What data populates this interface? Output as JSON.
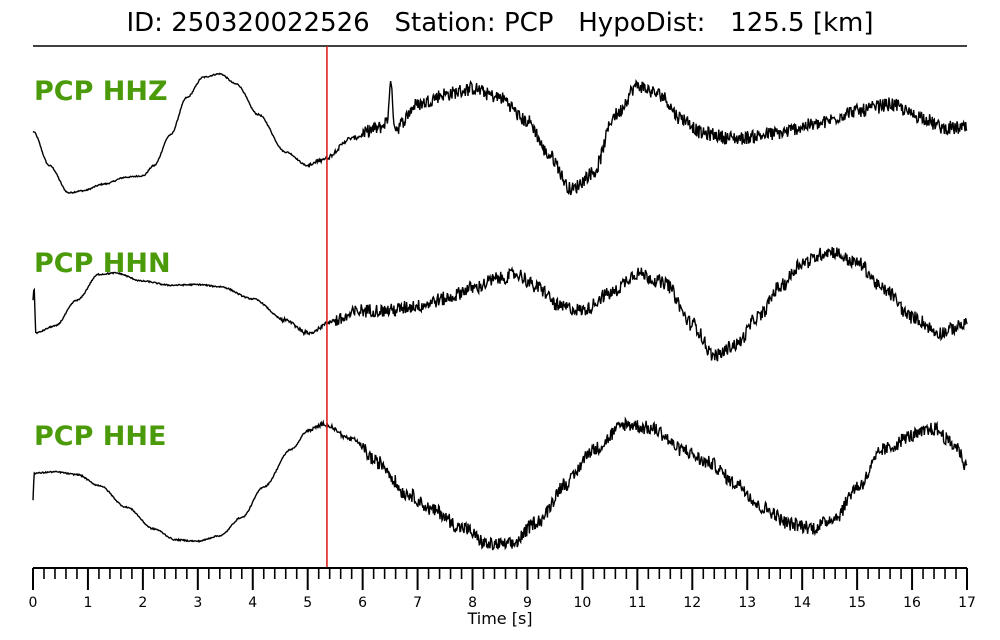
{
  "header": {
    "title": "ID: 250320022526   Station: PCP   HypoDist:   125.5 [km]"
  },
  "colors": {
    "channel_label": "#4a9a0a",
    "pick_line": "#e0201c",
    "trace": "#000000"
  },
  "chart_data": {
    "type": "line",
    "title": "ID: 250320022526   Station: PCP   HypoDist:   125.5 [km]",
    "xlabel": "Time [s]",
    "ylabel": "",
    "xlim": [
      0,
      17
    ],
    "x_major_ticks": [
      0,
      1,
      2,
      3,
      4,
      5,
      6,
      7,
      8,
      9,
      10,
      11,
      12,
      13,
      14,
      15,
      16,
      17
    ],
    "x_tick_labels": [
      "0",
      "1",
      "2",
      "3",
      "4",
      "5",
      "6",
      "7",
      "8",
      "9",
      "10",
      "11",
      "12",
      "13",
      "14",
      "15",
      "16",
      "17"
    ],
    "minor_tick_step": 0.2,
    "grid": false,
    "pick_time": 5.35,
    "ylim": [
      -1,
      1
    ],
    "series": [
      {
        "name": "PCP HHZ",
        "noise_from": 6.0,
        "points": [
          [
            0,
            0.05
          ],
          [
            0.3,
            -0.45
          ],
          [
            0.65,
            -0.85
          ],
          [
            0.9,
            -0.82
          ],
          [
            1.3,
            -0.72
          ],
          [
            1.7,
            -0.62
          ],
          [
            2.0,
            -0.6
          ],
          [
            2.2,
            -0.45
          ],
          [
            2.5,
            0.0
          ],
          [
            2.8,
            0.55
          ],
          [
            3.1,
            0.85
          ],
          [
            3.4,
            0.9
          ],
          [
            3.7,
            0.75
          ],
          [
            4.1,
            0.3
          ],
          [
            4.6,
            -0.25
          ],
          [
            5.0,
            -0.45
          ],
          [
            5.3,
            -0.35
          ],
          [
            5.8,
            -0.05
          ],
          [
            6.3,
            0.1
          ],
          [
            6.45,
            0.2
          ],
          [
            6.5,
            0.75
          ],
          [
            6.6,
            0.1
          ],
          [
            7.0,
            0.45
          ],
          [
            7.5,
            0.6
          ],
          [
            8.0,
            0.68
          ],
          [
            8.5,
            0.55
          ],
          [
            9.0,
            0.2
          ],
          [
            9.4,
            -0.3
          ],
          [
            9.8,
            -0.8
          ],
          [
            10.2,
            -0.55
          ],
          [
            10.6,
            0.3
          ],
          [
            11.0,
            0.72
          ],
          [
            11.4,
            0.6
          ],
          [
            11.8,
            0.25
          ],
          [
            12.2,
            0.02
          ],
          [
            12.8,
            -0.05
          ],
          [
            13.5,
            0.02
          ],
          [
            14.2,
            0.15
          ],
          [
            15.0,
            0.35
          ],
          [
            15.6,
            0.45
          ],
          [
            16.1,
            0.28
          ],
          [
            16.6,
            0.1
          ],
          [
            17.0,
            0.1
          ]
        ]
      },
      {
        "name": "PCP HHN",
        "noise_from": 5.5,
        "points": [
          [
            0,
            0.1
          ],
          [
            0.02,
            0.3
          ],
          [
            0.05,
            -0.38
          ],
          [
            0.4,
            -0.28
          ],
          [
            0.8,
            0.1
          ],
          [
            1.2,
            0.48
          ],
          [
            1.5,
            0.5
          ],
          [
            2.0,
            0.38
          ],
          [
            2.5,
            0.32
          ],
          [
            3.0,
            0.33
          ],
          [
            3.4,
            0.3
          ],
          [
            4.0,
            0.12
          ],
          [
            4.6,
            -0.2
          ],
          [
            5.0,
            -0.38
          ],
          [
            5.5,
            -0.2
          ],
          [
            6.0,
            -0.05
          ],
          [
            6.5,
            -0.05
          ],
          [
            7.0,
            0.02
          ],
          [
            7.5,
            0.12
          ],
          [
            8.0,
            0.28
          ],
          [
            8.5,
            0.42
          ],
          [
            8.8,
            0.48
          ],
          [
            9.2,
            0.28
          ],
          [
            9.6,
            0.0
          ],
          [
            10.0,
            -0.05
          ],
          [
            10.5,
            0.2
          ],
          [
            11.0,
            0.5
          ],
          [
            11.5,
            0.35
          ],
          [
            12.0,
            -0.25
          ],
          [
            12.4,
            -0.72
          ],
          [
            12.8,
            -0.55
          ],
          [
            13.2,
            -0.15
          ],
          [
            13.6,
            0.3
          ],
          [
            14.0,
            0.65
          ],
          [
            14.5,
            0.82
          ],
          [
            15.0,
            0.65
          ],
          [
            15.5,
            0.25
          ],
          [
            16.0,
            -0.15
          ],
          [
            16.5,
            -0.38
          ],
          [
            17.0,
            -0.25
          ]
        ]
      },
      {
        "name": "PCP HHE",
        "noise_from": 6.0,
        "points": [
          [
            0,
            -0.3
          ],
          [
            0.02,
            0.1
          ],
          [
            0.4,
            0.12
          ],
          [
            0.8,
            0.08
          ],
          [
            1.2,
            -0.08
          ],
          [
            1.7,
            -0.4
          ],
          [
            2.2,
            -0.72
          ],
          [
            2.6,
            -0.88
          ],
          [
            3.0,
            -0.9
          ],
          [
            3.4,
            -0.82
          ],
          [
            3.8,
            -0.55
          ],
          [
            4.2,
            -0.1
          ],
          [
            4.7,
            0.45
          ],
          [
            5.0,
            0.72
          ],
          [
            5.3,
            0.82
          ],
          [
            5.8,
            0.6
          ],
          [
            6.3,
            0.25
          ],
          [
            6.8,
            -0.2
          ],
          [
            7.3,
            -0.45
          ],
          [
            7.8,
            -0.7
          ],
          [
            8.3,
            -0.95
          ],
          [
            8.7,
            -0.95
          ],
          [
            9.2,
            -0.6
          ],
          [
            9.7,
            -0.05
          ],
          [
            10.2,
            0.45
          ],
          [
            10.8,
            0.82
          ],
          [
            11.3,
            0.75
          ],
          [
            11.8,
            0.45
          ],
          [
            12.3,
            0.25
          ],
          [
            12.8,
            -0.05
          ],
          [
            13.3,
            -0.42
          ],
          [
            13.8,
            -0.65
          ],
          [
            14.2,
            -0.7
          ],
          [
            14.6,
            -0.55
          ],
          [
            15.0,
            -0.1
          ],
          [
            15.5,
            0.45
          ],
          [
            16.0,
            0.65
          ],
          [
            16.4,
            0.75
          ],
          [
            16.8,
            0.5
          ],
          [
            17.0,
            0.2
          ]
        ]
      }
    ]
  }
}
